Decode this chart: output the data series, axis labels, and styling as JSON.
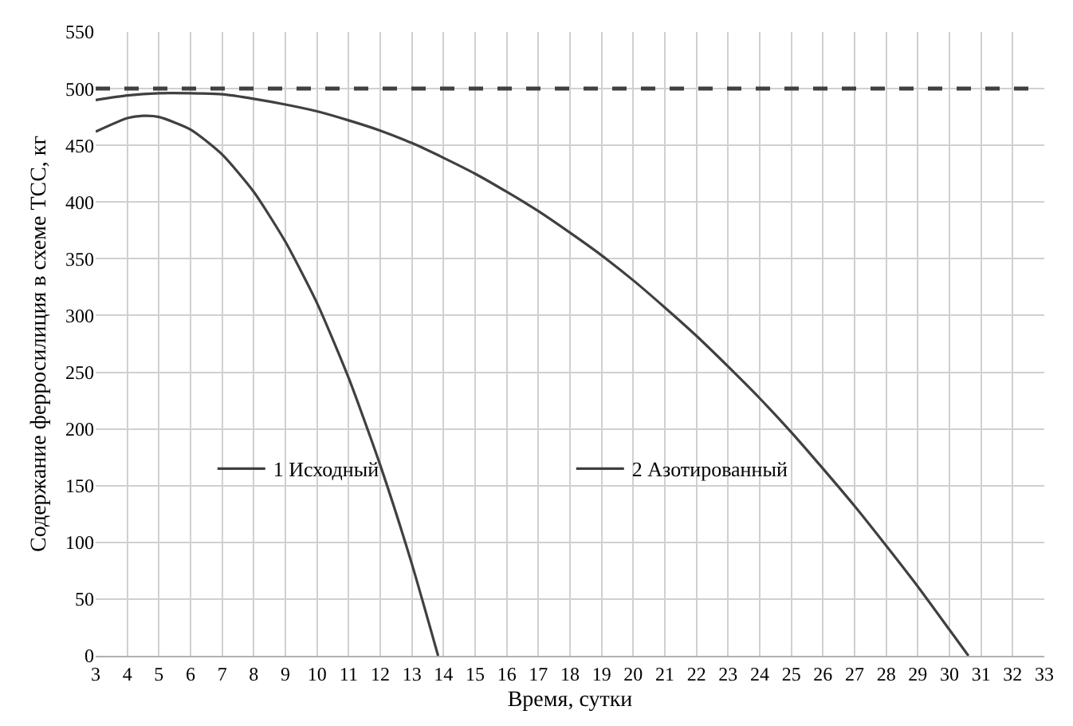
{
  "chart_data": {
    "type": "line",
    "xlabel": "Время, сутки",
    "ylabel": "Содержание ферросилиция в схеме ТСС, кг",
    "xlim": [
      3,
      33
    ],
    "xticks": [
      3,
      4,
      5,
      6,
      7,
      8,
      9,
      10,
      11,
      12,
      13,
      14,
      15,
      16,
      17,
      18,
      19,
      20,
      21,
      22,
      23,
      24,
      25,
      26,
      27,
      28,
      29,
      30,
      31,
      32,
      33
    ],
    "ylim": [
      0,
      550
    ],
    "yticks": [
      0,
      50,
      100,
      150,
      200,
      250,
      300,
      350,
      400,
      450,
      500,
      550
    ],
    "grid": true,
    "legend": "bottom",
    "marker": "none",
    "line_style": "solid",
    "series": [
      {
        "name": "1 Исходный",
        "color": "#404040",
        "x": [
          3,
          4,
          4.5,
          5,
          6,
          7,
          8,
          9,
          10,
          11,
          12,
          13,
          13.83
        ],
        "values": [
          462,
          474,
          476,
          475,
          464,
          442,
          409,
          365,
          311,
          245,
          168,
          81,
          0
        ]
      },
      {
        "name": "2 Азотированный",
        "color": "#404040",
        "x": [
          3,
          4,
          5,
          6,
          7,
          8,
          9,
          10,
          11,
          12,
          13,
          14,
          15,
          16,
          17,
          18,
          19,
          20,
          21,
          22,
          23,
          24,
          25,
          26,
          27,
          28,
          29,
          30,
          30.6
        ],
        "values": [
          490,
          494,
          496,
          496,
          495,
          491,
          486,
          480,
          472,
          463,
          452,
          439,
          425,
          409,
          392,
          373,
          353,
          331,
          307,
          282,
          255,
          227,
          197,
          165,
          132,
          97,
          61,
          23,
          0
        ]
      }
    ],
    "ref_lines": [
      {
        "axis": "y",
        "value": 500,
        "color": "#404040",
        "line_style": "dashed"
      }
    ]
  }
}
